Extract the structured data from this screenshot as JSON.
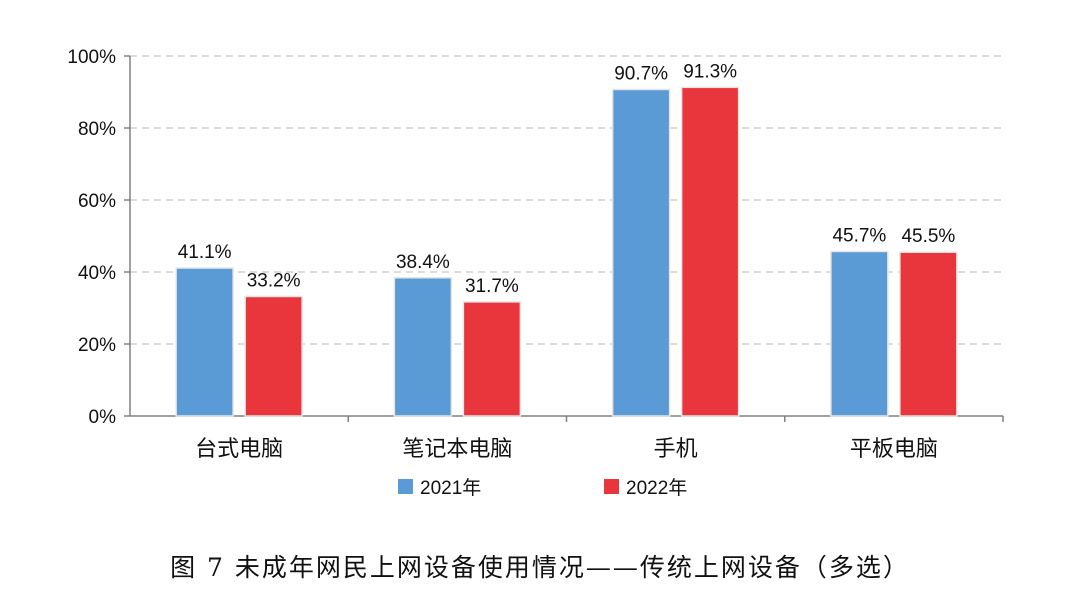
{
  "chart_data": {
    "type": "bar",
    "categories": [
      "台式电脑",
      "笔记本电脑",
      "手机",
      "平板电脑"
    ],
    "series": [
      {
        "name": "2021年",
        "color": "#5b9bd5",
        "values": [
          41.1,
          38.4,
          90.7,
          45.7
        ]
      },
      {
        "name": "2022年",
        "color": "#e8363c",
        "values": [
          33.2,
          31.7,
          91.3,
          45.5
        ]
      }
    ],
    "value_labels": [
      [
        "41.1%",
        "38.4%",
        "90.7%",
        "45.7%"
      ],
      [
        "33.2%",
        "31.7%",
        "91.3%",
        "45.5%"
      ]
    ],
    "yticks": [
      0,
      20,
      40,
      60,
      80,
      100
    ],
    "ytick_labels": [
      "0%",
      "20%",
      "40%",
      "60%",
      "80%",
      "100%"
    ],
    "ylim": [
      0,
      100
    ],
    "grid": true,
    "legend_position": "bottom"
  },
  "caption": "图 7 未成年网民上网设备使用情况——传统上网设备（多选）"
}
